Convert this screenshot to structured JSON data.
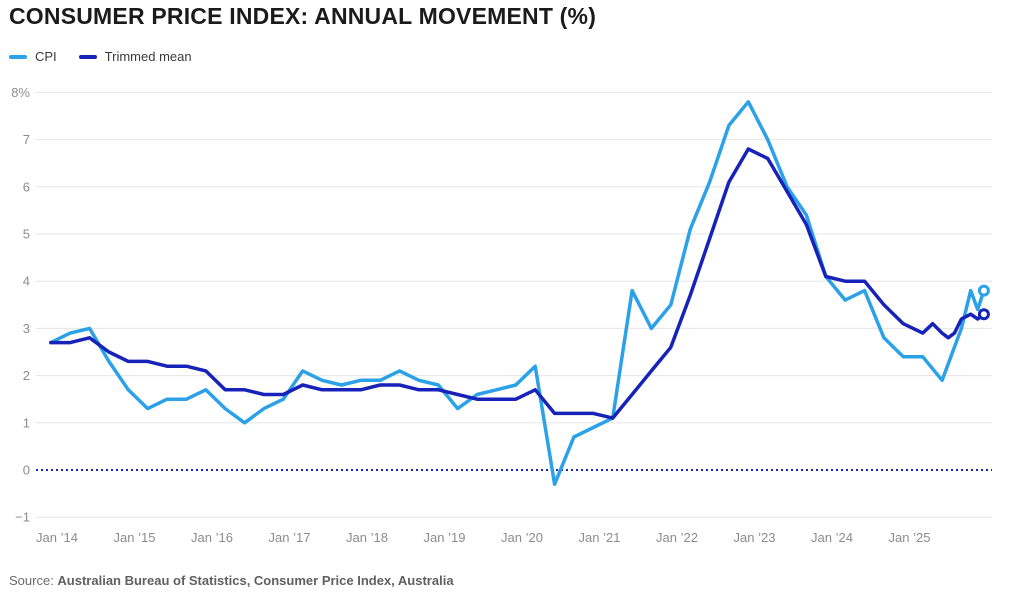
{
  "title": "CONSUMER PRICE INDEX: ANNUAL MOVEMENT (%)",
  "legend": [
    {
      "label": "CPI",
      "color": "#2BA1E8"
    },
    {
      "label": "Trimmed mean",
      "color": "#1722B8"
    }
  ],
  "source": {
    "prefix": "Source: ",
    "text": "Australian Bureau of Statistics, Consumer Price Index, Australia"
  },
  "colors": {
    "cpi": "#2BA1E8",
    "trimmed_mean": "#1722B8",
    "gridline": "#E5E5E5",
    "axis_text": "#8C8C8C",
    "title_text": "#1B1B1B"
  },
  "chart_data": {
    "type": "line",
    "title": "Consumer Price Index: annual movement (%)",
    "xlabel": "",
    "ylabel": "annual movement %",
    "ylim": [
      -1,
      8
    ],
    "grid": true,
    "legend_position": "top-left",
    "zero_baseline": "dotted",
    "y_ticks": [
      {
        "value": 8,
        "label": "8%"
      },
      {
        "value": 7,
        "label": "7"
      },
      {
        "value": 6,
        "label": "6"
      },
      {
        "value": 5,
        "label": "5"
      },
      {
        "value": 4,
        "label": "4"
      },
      {
        "value": 3,
        "label": "3"
      },
      {
        "value": 2,
        "label": "2"
      },
      {
        "value": 1,
        "label": "1"
      },
      {
        "value": 0,
        "label": "0"
      },
      {
        "value": -1,
        "label": "−1"
      }
    ],
    "x_ticks": [
      {
        "year": 2014,
        "label": "Jan ’14"
      },
      {
        "year": 2015,
        "label": "Jan ’15"
      },
      {
        "year": 2016,
        "label": "Jan ’16"
      },
      {
        "year": 2017,
        "label": "Jan ’17"
      },
      {
        "year": 2018,
        "label": "Jan ’18"
      },
      {
        "year": 2019,
        "label": "Jan ’19"
      },
      {
        "year": 2020,
        "label": "Jan ’20"
      },
      {
        "year": 2021,
        "label": "Jan ’21"
      },
      {
        "year": 2022,
        "label": "Jan ’22"
      },
      {
        "year": 2023,
        "label": "Jan ’23"
      },
      {
        "year": 2024,
        "label": "Jan ’24"
      },
      {
        "year": 2025,
        "label": "Jan ’25"
      }
    ],
    "series": [
      {
        "name": "CPI",
        "color": "#2BA1E8",
        "end_marker": true,
        "points": [
          [
            2013.92,
            2.7
          ],
          [
            2014.17,
            2.9
          ],
          [
            2014.42,
            3.0
          ],
          [
            2014.67,
            2.3
          ],
          [
            2014.92,
            1.7
          ],
          [
            2015.17,
            1.3
          ],
          [
            2015.42,
            1.5
          ],
          [
            2015.67,
            1.5
          ],
          [
            2015.92,
            1.7
          ],
          [
            2016.17,
            1.3
          ],
          [
            2016.42,
            1.0
          ],
          [
            2016.67,
            1.3
          ],
          [
            2016.92,
            1.5
          ],
          [
            2017.17,
            2.1
          ],
          [
            2017.42,
            1.9
          ],
          [
            2017.67,
            1.8
          ],
          [
            2017.92,
            1.9
          ],
          [
            2018.17,
            1.9
          ],
          [
            2018.42,
            2.1
          ],
          [
            2018.67,
            1.9
          ],
          [
            2018.92,
            1.8
          ],
          [
            2019.17,
            1.3
          ],
          [
            2019.42,
            1.6
          ],
          [
            2019.67,
            1.7
          ],
          [
            2019.92,
            1.8
          ],
          [
            2020.17,
            2.2
          ],
          [
            2020.42,
            -0.3
          ],
          [
            2020.67,
            0.7
          ],
          [
            2020.92,
            0.9
          ],
          [
            2021.17,
            1.1
          ],
          [
            2021.42,
            3.8
          ],
          [
            2021.67,
            3.0
          ],
          [
            2021.92,
            3.5
          ],
          [
            2022.17,
            5.1
          ],
          [
            2022.42,
            6.1
          ],
          [
            2022.67,
            7.3
          ],
          [
            2022.92,
            7.8
          ],
          [
            2023.17,
            7.0
          ],
          [
            2023.42,
            6.0
          ],
          [
            2023.67,
            5.4
          ],
          [
            2023.92,
            4.1
          ],
          [
            2024.17,
            3.6
          ],
          [
            2024.42,
            3.8
          ],
          [
            2024.67,
            2.8
          ],
          [
            2024.92,
            2.4
          ],
          [
            2025.17,
            2.4
          ],
          [
            2025.42,
            1.9
          ],
          [
            2025.67,
            3.0
          ],
          [
            2025.79,
            3.8
          ],
          [
            2025.88,
            3.4
          ],
          [
            2025.96,
            3.8
          ]
        ]
      },
      {
        "name": "Trimmed mean",
        "color": "#1722B8",
        "end_marker": true,
        "points": [
          [
            2013.92,
            2.7
          ],
          [
            2014.17,
            2.7
          ],
          [
            2014.42,
            2.8
          ],
          [
            2014.67,
            2.5
          ],
          [
            2014.92,
            2.3
          ],
          [
            2015.17,
            2.3
          ],
          [
            2015.42,
            2.2
          ],
          [
            2015.67,
            2.2
          ],
          [
            2015.92,
            2.1
          ],
          [
            2016.17,
            1.7
          ],
          [
            2016.42,
            1.7
          ],
          [
            2016.67,
            1.6
          ],
          [
            2016.92,
            1.6
          ],
          [
            2017.17,
            1.8
          ],
          [
            2017.42,
            1.7
          ],
          [
            2017.67,
            1.7
          ],
          [
            2017.92,
            1.7
          ],
          [
            2018.17,
            1.8
          ],
          [
            2018.42,
            1.8
          ],
          [
            2018.67,
            1.7
          ],
          [
            2018.92,
            1.7
          ],
          [
            2019.17,
            1.6
          ],
          [
            2019.42,
            1.5
          ],
          [
            2019.67,
            1.5
          ],
          [
            2019.92,
            1.5
          ],
          [
            2020.17,
            1.7
          ],
          [
            2020.42,
            1.2
          ],
          [
            2020.67,
            1.2
          ],
          [
            2020.92,
            1.2
          ],
          [
            2021.17,
            1.1
          ],
          [
            2021.42,
            1.6
          ],
          [
            2021.67,
            2.1
          ],
          [
            2021.92,
            2.6
          ],
          [
            2022.17,
            3.7
          ],
          [
            2022.42,
            4.9
          ],
          [
            2022.67,
            6.1
          ],
          [
            2022.92,
            6.8
          ],
          [
            2023.17,
            6.6
          ],
          [
            2023.42,
            5.9
          ],
          [
            2023.67,
            5.2
          ],
          [
            2023.92,
            4.1
          ],
          [
            2024.17,
            4.0
          ],
          [
            2024.42,
            4.0
          ],
          [
            2024.67,
            3.5
          ],
          [
            2024.92,
            3.1
          ],
          [
            2025.17,
            2.9
          ],
          [
            2025.3,
            3.1
          ],
          [
            2025.42,
            2.9
          ],
          [
            2025.5,
            2.8
          ],
          [
            2025.58,
            2.9
          ],
          [
            2025.67,
            3.2
          ],
          [
            2025.79,
            3.3
          ],
          [
            2025.88,
            3.2
          ],
          [
            2025.96,
            3.3
          ]
        ]
      }
    ]
  }
}
